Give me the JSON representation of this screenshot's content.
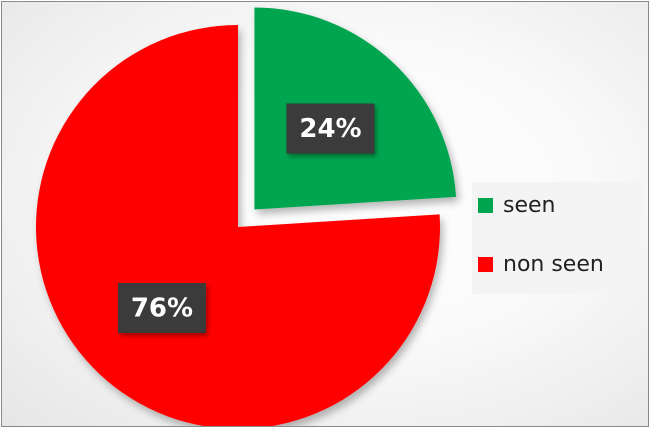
{
  "chart_data": {
    "type": "pie",
    "title": "",
    "slices": [
      {
        "label": "seen",
        "value": 24,
        "data_label": "24%",
        "color": "#00a550",
        "exploded": true
      },
      {
        "label": "non seen",
        "value": 76,
        "data_label": "76%",
        "color": "#ff0000",
        "exploded": false
      }
    ],
    "start_angle_deg": 0,
    "direction": "clockwise",
    "legend": {
      "placement": "right",
      "items": [
        {
          "label": "seen",
          "color": "#00a550"
        },
        {
          "label": "non seen",
          "color": "#ff0000"
        }
      ]
    }
  }
}
